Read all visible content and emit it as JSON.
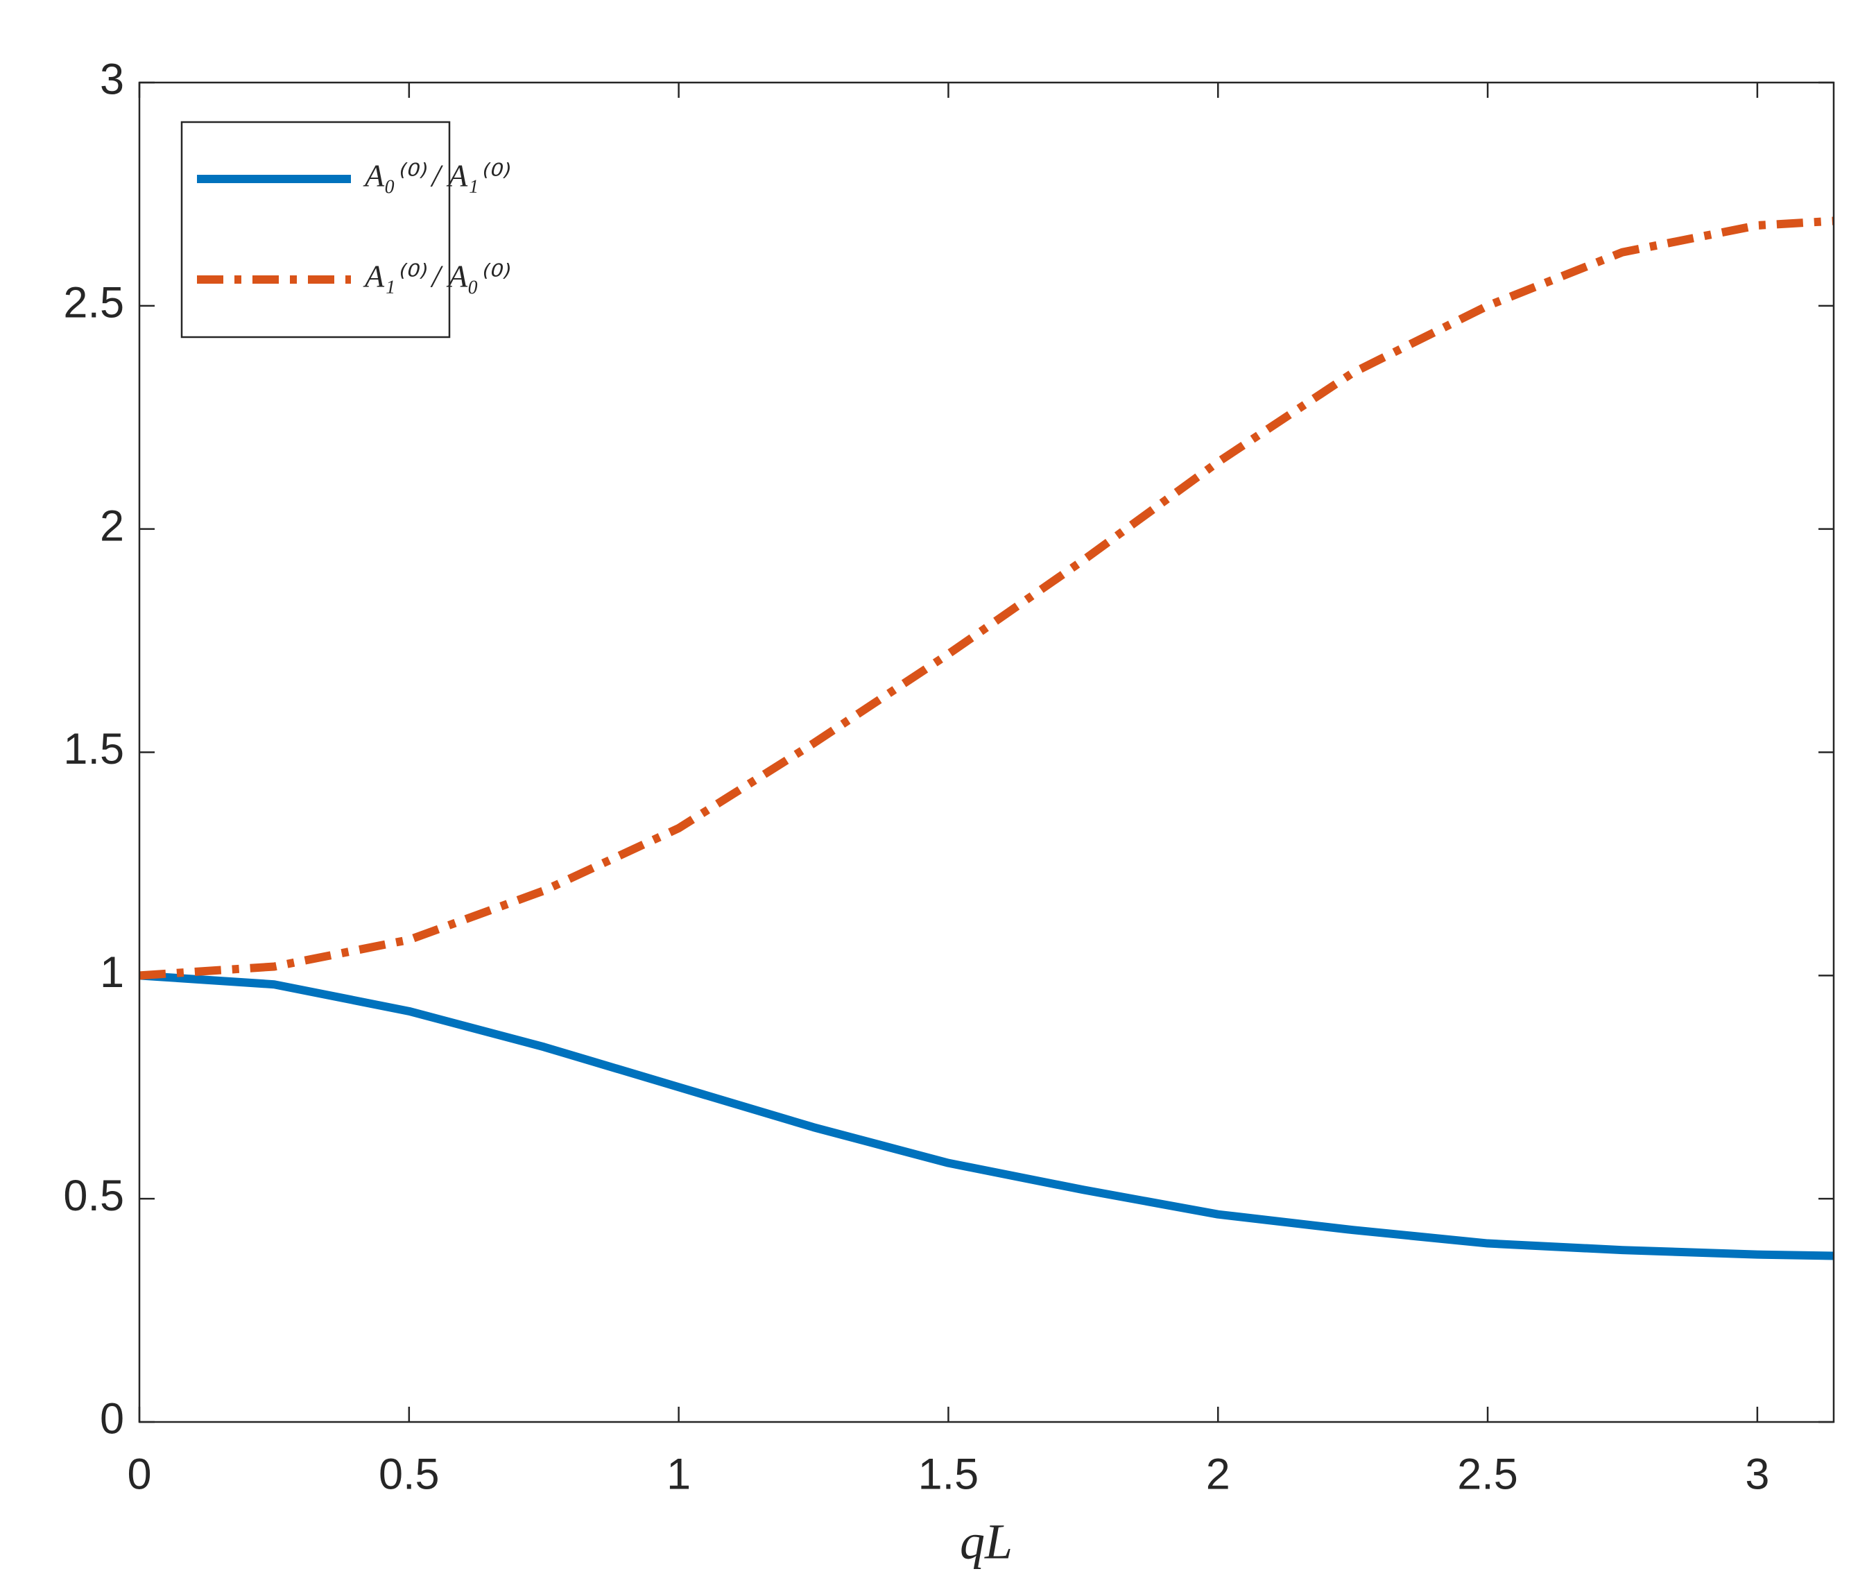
{
  "chart_data": {
    "type": "line",
    "x_label": "qL",
    "x": [
      0,
      0.25,
      0.5,
      0.75,
      1.0,
      1.25,
      1.5,
      1.75,
      2.0,
      2.25,
      2.5,
      2.75,
      3.0,
      3.1416
    ],
    "series": [
      {
        "name": "A₀⁽⁰⁾ / A₁⁽⁰⁾",
        "color": "#0072bd",
        "style": "solid",
        "values": [
          1.0,
          0.98,
          0.92,
          0.84,
          0.75,
          0.66,
          0.58,
          0.52,
          0.465,
          0.43,
          0.4,
          0.385,
          0.375,
          0.372
        ]
      },
      {
        "name": "A₁⁽⁰⁾ / A₀⁽⁰⁾",
        "color": "#d95319",
        "style": "dashdot",
        "values": [
          1.0,
          1.02,
          1.08,
          1.19,
          1.33,
          1.52,
          1.72,
          1.93,
          2.15,
          2.35,
          2.5,
          2.62,
          2.68,
          2.69
        ]
      }
    ],
    "xlim": [
      0,
      3.1416
    ],
    "xticks": [
      0,
      0.5,
      1,
      1.5,
      2,
      2.5,
      3
    ],
    "ylim": [
      0,
      3
    ],
    "yticks": [
      0,
      0.5,
      1,
      1.5,
      2,
      2.5,
      3
    ],
    "legend": "upper left"
  }
}
